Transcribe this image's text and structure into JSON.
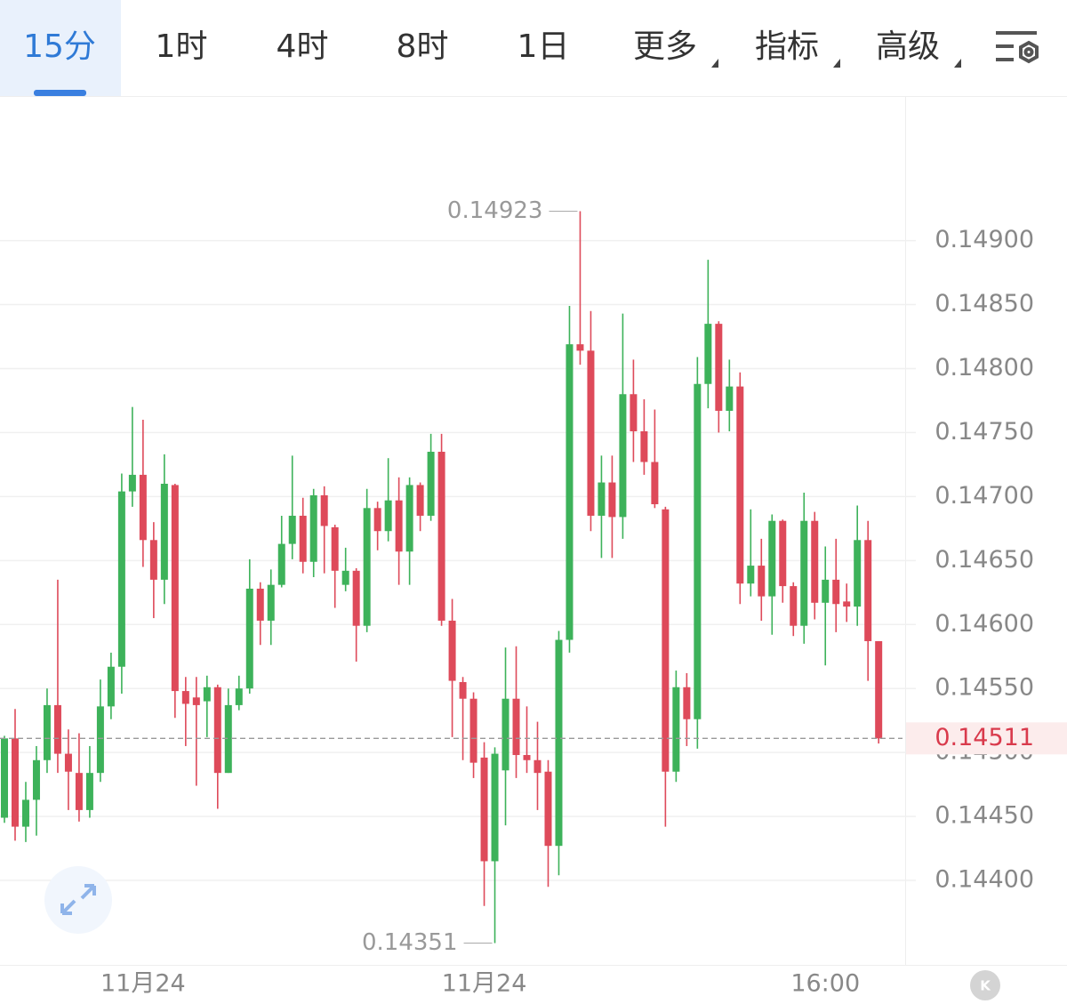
{
  "tabs": {
    "items": [
      "15分",
      "1时",
      "4时",
      "8时",
      "1日",
      "更多",
      "指标",
      "高级"
    ],
    "active": 0
  },
  "chart_data": {
    "type": "candlestick",
    "categories": [
      null,
      null,
      null,
      null,
      null,
      null,
      null,
      null,
      null,
      null,
      null,
      null,
      null,
      "11月24",
      null,
      null,
      null,
      null,
      null,
      null,
      null,
      null,
      null,
      null,
      null,
      null,
      null,
      null,
      null,
      null,
      null,
      null,
      null,
      null,
      null,
      null,
      null,
      null,
      null,
      null,
      null,
      null,
      null,
      null,
      null,
      "11月24",
      null,
      null,
      null,
      null,
      null,
      null,
      null,
      null,
      null,
      null,
      null,
      null,
      null,
      null,
      null,
      null,
      null,
      null,
      null,
      null,
      null,
      null,
      null,
      null,
      null,
      null,
      null,
      null,
      null,
      null,
      null,
      "16:00",
      null,
      null,
      null,
      null,
      null
    ],
    "open": [
      0.14449,
      0.14511,
      0.14442,
      0.14463,
      0.14494,
      0.14537,
      0.14499,
      0.14484,
      0.14455,
      0.14484,
      0.14536,
      0.14567,
      0.14704,
      0.14717,
      0.14666,
      0.14635,
      0.14709,
      0.14548,
      0.14543,
      0.1454,
      0.14551,
      0.14484,
      0.14537,
      0.1455,
      0.14628,
      0.14603,
      0.14631,
      0.14663,
      0.14685,
      0.14649,
      0.14701,
      0.14676,
      0.14631,
      0.14642,
      0.14599,
      0.14691,
      0.14673,
      0.14697,
      0.14657,
      0.14709,
      0.14685,
      0.14735,
      0.14603,
      0.14555,
      0.14542,
      0.14496,
      0.14415,
      0.14486,
      0.14542,
      0.14498,
      0.14494,
      0.14485,
      0.14427,
      0.14588,
      0.14819,
      0.14814,
      0.14685,
      0.14711,
      0.14684,
      0.1478,
      0.14751,
      0.14727,
      0.1469,
      0.14485,
      0.14551,
      0.14526,
      0.14788,
      0.14835,
      0.14767,
      0.14786,
      0.14632,
      0.14646,
      0.14622,
      0.14681,
      0.1463,
      0.14599,
      0.14681,
      0.14617,
      0.14635,
      0.14618,
      0.14614,
      0.14666,
      0.14587
    ],
    "close": [
      0.14511,
      0.14442,
      0.14463,
      0.14494,
      0.14537,
      0.14499,
      0.14485,
      0.14455,
      0.14484,
      0.14536,
      0.14567,
      0.14704,
      0.14717,
      0.14666,
      0.14635,
      0.1471,
      0.14548,
      0.14538,
      0.14537,
      0.14551,
      0.14484,
      0.14537,
      0.1455,
      0.14628,
      0.14603,
      0.14631,
      0.14663,
      0.14685,
      0.14649,
      0.14701,
      0.14677,
      0.14642,
      0.14642,
      0.14599,
      0.14691,
      0.14673,
      0.14697,
      0.14657,
      0.14709,
      0.14685,
      0.14735,
      0.14603,
      0.14556,
      0.14542,
      0.14492,
      0.14415,
      0.14499,
      0.14542,
      0.14498,
      0.14494,
      0.14484,
      0.14427,
      0.14588,
      0.14819,
      0.14814,
      0.14685,
      0.14711,
      0.14684,
      0.1478,
      0.14751,
      0.14727,
      0.14694,
      0.14485,
      0.14551,
      0.14526,
      0.14788,
      0.14835,
      0.14767,
      0.14786,
      0.14632,
      0.14646,
      0.14622,
      0.14681,
      0.1463,
      0.14599,
      0.14681,
      0.14617,
      0.14635,
      0.14616,
      0.14614,
      0.14666,
      0.14587,
      0.14511
    ],
    "high": [
      0.14513,
      0.14534,
      0.14477,
      0.14505,
      0.1455,
      0.14635,
      0.14518,
      0.14515,
      0.14505,
      0.14557,
      0.14578,
      0.14718,
      0.1477,
      0.1476,
      0.1468,
      0.14733,
      0.1471,
      0.14559,
      0.14559,
      0.1456,
      0.14553,
      0.1455,
      0.1456,
      0.14651,
      0.14633,
      0.14643,
      0.14685,
      0.14732,
      0.14699,
      0.14706,
      0.14708,
      0.14678,
      0.1466,
      0.14644,
      0.14706,
      0.14696,
      0.1473,
      0.14715,
      0.14715,
      0.14711,
      0.14749,
      0.14749,
      0.1462,
      0.14559,
      0.14547,
      0.14508,
      0.14504,
      0.14582,
      0.14583,
      0.14536,
      0.14524,
      0.14494,
      0.14595,
      0.14849,
      0.14923,
      0.14845,
      0.14732,
      0.14732,
      0.14843,
      0.14807,
      0.14776,
      0.14768,
      0.14692,
      0.14564,
      0.14562,
      0.14809,
      0.14885,
      0.14837,
      0.14807,
      0.14797,
      0.1469,
      0.14667,
      0.14686,
      0.14682,
      0.14633,
      0.14703,
      0.14688,
      0.14661,
      0.14667,
      0.14632,
      0.14693,
      0.14681,
      0.14587
    ],
    "low": [
      0.14445,
      0.14431,
      0.1443,
      0.14435,
      0.14484,
      0.14484,
      0.14455,
      0.14446,
      0.14449,
      0.14477,
      0.14526,
      0.14546,
      0.14692,
      0.14645,
      0.14605,
      0.14616,
      0.14527,
      0.14505,
      0.14474,
      0.14512,
      0.14456,
      0.14484,
      0.14533,
      0.14546,
      0.14584,
      0.14584,
      0.14629,
      0.14651,
      0.1464,
      0.14637,
      0.1464,
      0.14613,
      0.14626,
      0.14571,
      0.14594,
      0.14658,
      0.14665,
      0.14631,
      0.14631,
      0.14673,
      0.14681,
      0.14599,
      0.14512,
      0.14494,
      0.1448,
      0.1438,
      0.14351,
      0.14443,
      0.1448,
      0.14484,
      0.14455,
      0.14395,
      0.14404,
      0.14578,
      0.14803,
      0.14673,
      0.14652,
      0.14652,
      0.14667,
      0.14727,
      0.14717,
      0.14691,
      0.14442,
      0.14477,
      0.14505,
      0.14503,
      0.14769,
      0.1475,
      0.14751,
      0.14616,
      0.14622,
      0.14603,
      0.14592,
      0.14617,
      0.14591,
      0.14585,
      0.14604,
      0.14568,
      0.14594,
      0.14602,
      0.14599,
      0.14556,
      0.14507
    ],
    "up_color": "#3db25a",
    "down_color": "#de4a5a",
    "ylim": [
      0.14334,
      0.15013
    ],
    "yticks": [
      {
        "value": 0.144,
        "label": "0.14400"
      },
      {
        "value": 0.1445,
        "label": "0.14450"
      },
      {
        "value": 0.145,
        "label": "0.14500"
      },
      {
        "value": 0.1455,
        "label": "0.14550"
      },
      {
        "value": 0.146,
        "label": "0.14600"
      },
      {
        "value": 0.1465,
        "label": "0.14650"
      },
      {
        "value": 0.147,
        "label": "0.14700"
      },
      {
        "value": 0.1475,
        "label": "0.14750"
      },
      {
        "value": 0.148,
        "label": "0.14800"
      },
      {
        "value": 0.1485,
        "label": "0.14850"
      },
      {
        "value": 0.149,
        "label": "0.14900"
      }
    ],
    "grid": true,
    "high_label": "0.14923",
    "low_label": "0.14351",
    "last_price": {
      "value": 0.14511,
      "label": "0.14511"
    }
  }
}
